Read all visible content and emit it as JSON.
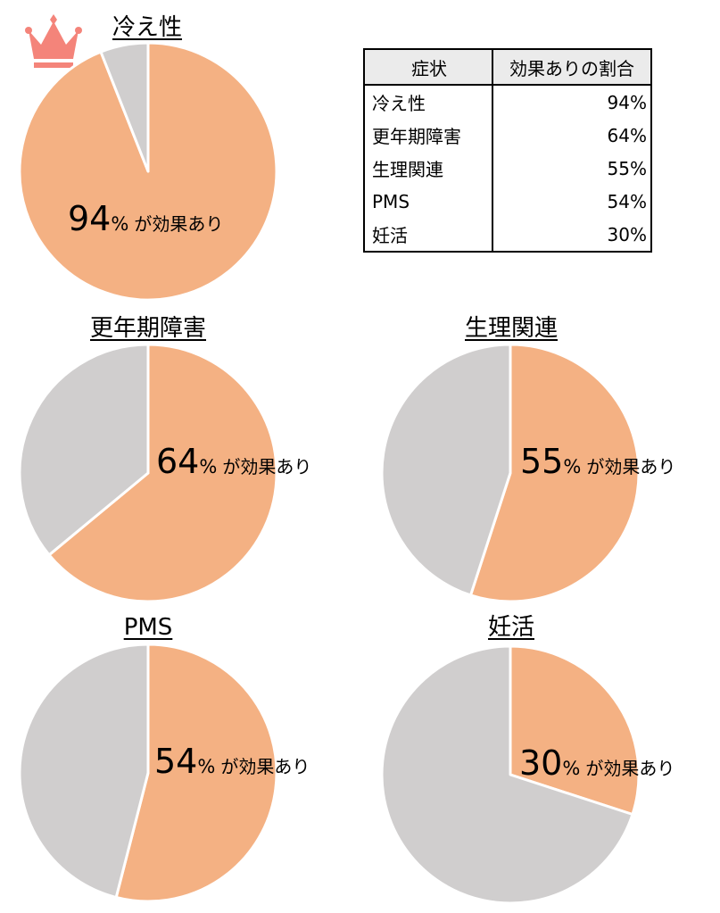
{
  "table": {
    "headers": [
      "症状",
      "効果ありの割合"
    ],
    "rows": [
      [
        "冷え性",
        "94%"
      ],
      [
        "更年期障害",
        "64%"
      ],
      [
        "生理関連",
        "55%"
      ],
      [
        "PMS",
        "54%"
      ],
      [
        "妊活",
        "30%"
      ]
    ]
  },
  "colors": {
    "effective": "#f4b183",
    "other": "#d0cece",
    "crown": "#f4847a"
  },
  "chart_data": [
    {
      "type": "pie",
      "title": "冷え性",
      "values": [
        94,
        6
      ],
      "label_number": "94",
      "label_unit": "%",
      "label_suffix": "が効果あり",
      "highlight": "crown-icon"
    },
    {
      "type": "pie",
      "title": "更年期障害",
      "values": [
        64,
        36
      ],
      "label_number": "64",
      "label_unit": "%",
      "label_suffix": "が効果あり"
    },
    {
      "type": "pie",
      "title": "生理関連",
      "values": [
        55,
        45
      ],
      "label_number": "55",
      "label_unit": "%",
      "label_suffix": "が効果あり"
    },
    {
      "type": "pie",
      "title": "PMS",
      "values": [
        54,
        46
      ],
      "label_number": "54",
      "label_unit": "%",
      "label_suffix": "が効果あり"
    },
    {
      "type": "pie",
      "title": "妊活",
      "values": [
        30,
        70
      ],
      "label_number": "30",
      "label_unit": "%",
      "label_suffix": "が効果あり"
    }
  ]
}
